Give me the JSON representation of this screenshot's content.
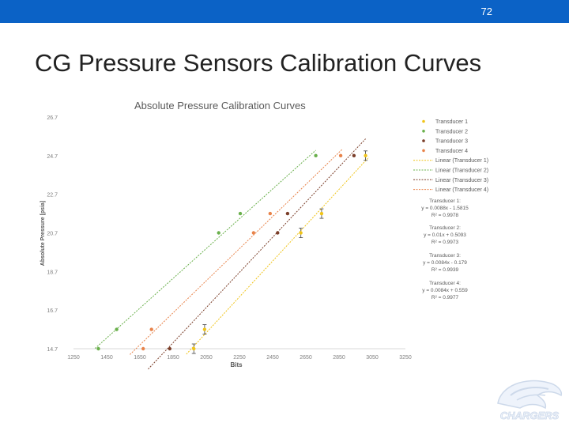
{
  "slide": {
    "page_number": "72",
    "title": "CG Pressure Sensors Calibration Curves"
  },
  "logo": {
    "text": "CHARGERS"
  },
  "colors": {
    "topbar": "#0b62c6",
    "transducer_1": "#f0c419",
    "transducer_2": "#6ab04c",
    "transducer_3": "#7b3f2a",
    "transducer_4": "#e8834a"
  },
  "chart_data": {
    "type": "scatter",
    "title": "Absolute Pressure Calibration Curves",
    "xlabel": "Bits",
    "ylabel": "Absolute Pressure [psia]",
    "xlim": [
      1250,
      3250
    ],
    "ylim": [
      14.7,
      26.7
    ],
    "x_ticks": [
      "1250",
      "1450",
      "1650",
      "1850",
      "2050",
      "2250",
      "2450",
      "2650",
      "2850",
      "3050",
      "3250"
    ],
    "y_ticks": [
      "14.7",
      "16.7",
      "18.7",
      "20.7",
      "22.7",
      "24.7",
      "26.7"
    ],
    "grid": false,
    "legend_position": "right",
    "legend": [
      "Transducer 1",
      "Transducer 2",
      "Transducer 3",
      "Transducer 4",
      "Linear (Transducer 1)",
      "Linear (Transducer 2)",
      "Linear (Transducer 3)",
      "Linear (Transducer 4)"
    ],
    "series": [
      {
        "name": "Transducer 1",
        "color": "#f0c419",
        "x": [
          1975,
          2040,
          2620,
          2745,
          3010
        ],
        "y": [
          14.7,
          15.7,
          20.7,
          21.7,
          24.7
        ],
        "error_bars": true,
        "trendline": {
          "name": "Linear (Transducer 1)",
          "x": [
            1930,
            3030
          ]
        },
        "equation": "Transducer 1:",
        "equation_line": "y = 0.0088x - 1.5815",
        "r_squared": "R² = 0.9978"
      },
      {
        "name": "Transducer 2",
        "color": "#6ab04c",
        "x": [
          1400,
          1510,
          2125,
          2255,
          2710
        ],
        "y": [
          14.7,
          15.7,
          20.7,
          21.7,
          24.7
        ],
        "error_bars": false,
        "trendline": {
          "name": "Linear (Transducer 2)",
          "x": [
            1380,
            2710
          ]
        },
        "equation": "Transducer 2:",
        "equation_line": "y = 0.01x + 0.5093",
        "r_squared": "R² = 0.9973"
      },
      {
        "name": "Transducer 3",
        "color": "#7b3f2a",
        "x": [
          1830,
          2480,
          2540,
          2940
        ],
        "y": [
          14.7,
          20.7,
          21.7,
          24.7
        ],
        "error_bars": false,
        "trendline": {
          "name": "Linear (Transducer 3)",
          "x": [
            1700,
            3010
          ]
        },
        "equation": "Transducer 3:",
        "equation_line": "y = 0.0084x - 0.179",
        "r_squared": "R² = 0.9939"
      },
      {
        "name": "Transducer 4",
        "color": "#e8834a",
        "x": [
          1670,
          1720,
          2335,
          2435,
          2860
        ],
        "y": [
          14.7,
          15.7,
          20.7,
          21.7,
          24.7
        ],
        "error_bars": false,
        "trendline": {
          "name": "Linear (Transducer 4)",
          "x": [
            1590,
            2870
          ]
        },
        "equation": "Transducer 4:",
        "equation_line": "y = 0.0084x + 0.559",
        "r_squared": "R² = 0.9977"
      }
    ]
  }
}
